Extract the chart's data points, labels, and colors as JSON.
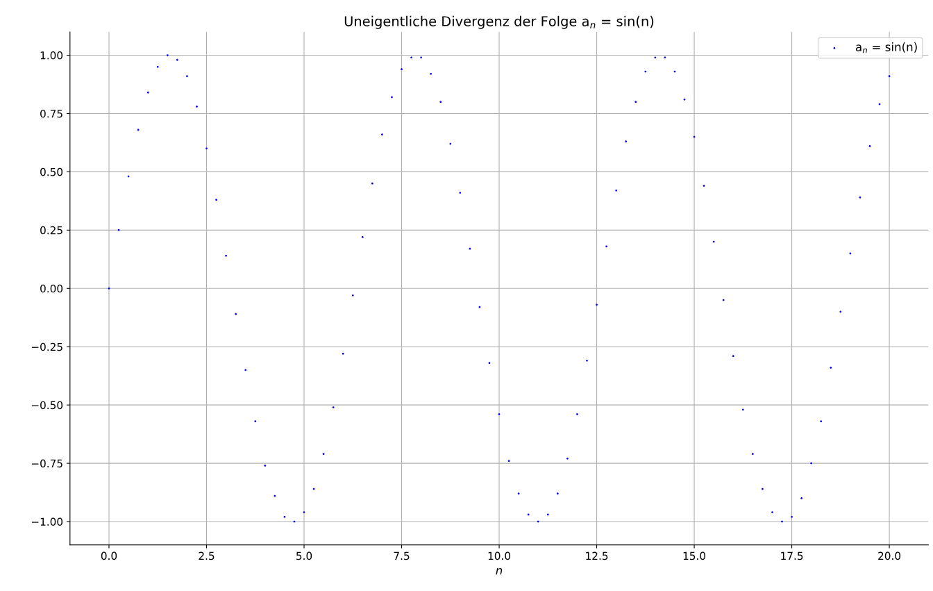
{
  "chart_data": {
    "type": "scatter",
    "title": "Uneigentliche Divergenz der Folge a$_{n}$ = sin(n)",
    "xlabel": "n",
    "x": [
      0,
      0.25,
      0.5,
      0.75,
      1,
      1.25,
      1.5,
      1.75,
      2,
      2.25,
      2.5,
      2.75,
      3,
      3.25,
      3.5,
      3.75,
      4,
      4.25,
      4.5,
      4.75,
      5,
      5.25,
      5.5,
      5.75,
      6,
      6.25,
      6.5,
      6.75,
      7,
      7.25,
      7.5,
      7.75,
      8,
      8.25,
      8.5,
      8.75,
      9,
      9.25,
      9.5,
      9.75,
      10,
      10.25,
      10.5,
      10.75,
      11,
      11.25,
      11.5,
      11.75,
      12,
      12.25,
      12.5,
      12.75,
      13,
      13.25,
      13.5,
      13.75,
      14,
      14.25,
      14.5,
      14.75,
      15,
      15.25,
      15.5,
      15.75,
      16,
      16.25,
      16.5,
      16.75,
      17,
      17.25,
      17.5,
      17.75,
      18,
      18.25,
      18.5,
      18.75,
      19,
      19.25,
      19.5,
      19.75,
      20
    ],
    "series": [
      {
        "name": "a$_{n}$ = sin(n)",
        "color": "#0000ff",
        "values": [
          0,
          0.25,
          0.48,
          0.68,
          0.84,
          0.95,
          1.0,
          0.98,
          0.91,
          0.78,
          0.6,
          0.38,
          0.14,
          -0.11,
          -0.35,
          -0.57,
          -0.76,
          -0.89,
          -0.98,
          -1.0,
          -0.96,
          -0.86,
          -0.71,
          -0.51,
          -0.28,
          -0.03,
          0.22,
          0.45,
          0.66,
          0.82,
          0.94,
          0.99,
          0.99,
          0.92,
          0.8,
          0.62,
          0.41,
          0.17,
          -0.08,
          -0.32,
          -0.54,
          -0.74,
          -0.88,
          -0.97,
          -1.0,
          -0.97,
          -0.88,
          -0.73,
          -0.54,
          -0.31,
          -0.07,
          0.18,
          0.42,
          0.63,
          0.8,
          0.93,
          0.99,
          0.99,
          0.93,
          0.81,
          0.65,
          0.44,
          0.2,
          -0.05,
          -0.29,
          -0.52,
          -0.71,
          -0.86,
          -0.96,
          -1.0,
          -0.98,
          -0.9,
          -0.75,
          -0.57,
          -0.34,
          -0.1,
          0.15,
          0.39,
          0.61,
          0.79,
          0.91
        ]
      }
    ],
    "xlim": [
      -1,
      21
    ],
    "ylim": [
      -1.1,
      1.1
    ],
    "xticks": [
      {
        "value": 0,
        "label": "0.0"
      },
      {
        "value": 2.5,
        "label": "2.5"
      },
      {
        "value": 5,
        "label": "5.0"
      },
      {
        "value": 7.5,
        "label": "7.5"
      },
      {
        "value": 10,
        "label": "10.0"
      },
      {
        "value": 12.5,
        "label": "12.5"
      },
      {
        "value": 15,
        "label": "15.0"
      },
      {
        "value": 17.5,
        "label": "17.5"
      },
      {
        "value": 20,
        "label": "20.0"
      }
    ],
    "yticks": [
      {
        "value": -1,
        "label": "−1.00"
      },
      {
        "value": -0.75,
        "label": "−0.75"
      },
      {
        "value": -0.5,
        "label": "−0.50"
      },
      {
        "value": -0.25,
        "label": "−0.25"
      },
      {
        "value": 0,
        "label": "0.00"
      },
      {
        "value": 0.25,
        "label": "0.25"
      },
      {
        "value": 0.5,
        "label": "0.50"
      },
      {
        "value": 0.75,
        "label": "0.75"
      },
      {
        "value": 1,
        "label": "1.00"
      }
    ],
    "grid": true,
    "legend": "top right",
    "marker": "circle"
  }
}
